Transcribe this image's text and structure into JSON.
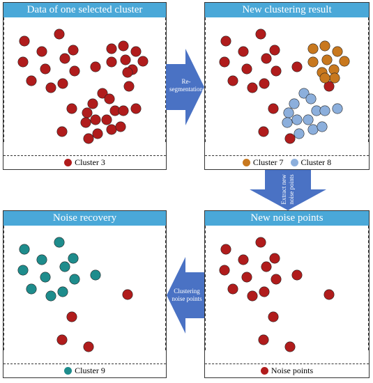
{
  "colors": {
    "header_bg": "#4aa8d8",
    "noise_red": "#b01c1c",
    "cluster7_orange": "#c8781e",
    "cluster8_blue": "#8cafdc",
    "cluster9_teal": "#1e8c8c",
    "arrow_blue": "#4a72c4"
  },
  "panels": {
    "tl": {
      "title": "Data of one selected cluster",
      "legend": [
        {
          "label": "Cluster 3",
          "color": "#b01c1c"
        }
      ]
    },
    "tr": {
      "title": "New clustering result",
      "legend": [
        {
          "label": "Cluster 7",
          "color": "#c8781e"
        },
        {
          "label": "Cluster 8",
          "color": "#8cafdc"
        }
      ]
    },
    "br": {
      "title": "New noise points",
      "legend": [
        {
          "label": "Noise points",
          "color": "#b01c1c"
        }
      ]
    },
    "bl": {
      "title": "Noise recovery",
      "legend": [
        {
          "label": "Cluster 9",
          "color": "#1e8c8c"
        }
      ]
    }
  },
  "arrows": {
    "right": {
      "label": [
        "Re-",
        "segmentation"
      ]
    },
    "down": {
      "label": [
        "Extract new",
        "noise points"
      ]
    },
    "left": {
      "label": [
        "Clustering",
        "noise points"
      ]
    }
  }
}
